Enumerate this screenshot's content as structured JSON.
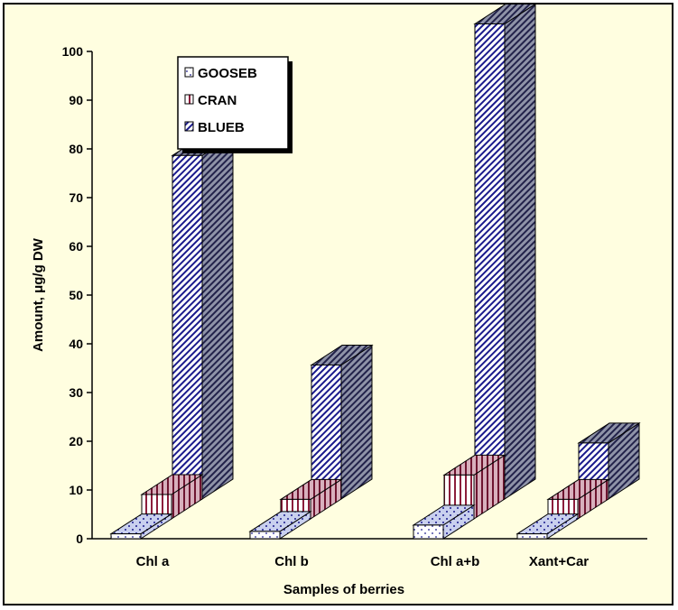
{
  "chart_data": {
    "type": "bar",
    "style": "3d-clustered",
    "categories": [
      "Chl a",
      "Chl b",
      "Chl a+b",
      "Xant+Car"
    ],
    "series": [
      {
        "name": "GOOSEB",
        "values": [
          1,
          1.5,
          2.8,
          1
        ]
      },
      {
        "name": "CRAN",
        "values": [
          5,
          4,
          9,
          4
        ]
      },
      {
        "name": "BLUEB",
        "values": [
          70.5,
          27.5,
          97.5,
          11.5
        ]
      }
    ],
    "xlabel": "Samples of berries",
    "ylabel": "Amount, μg/g DW",
    "ylim": [
      0,
      100
    ],
    "yticks": [
      0,
      10,
      20,
      30,
      40,
      50,
      60,
      70,
      80,
      90,
      100
    ],
    "grid": false,
    "legend_position": "top-center",
    "background": "#fffee0"
  }
}
